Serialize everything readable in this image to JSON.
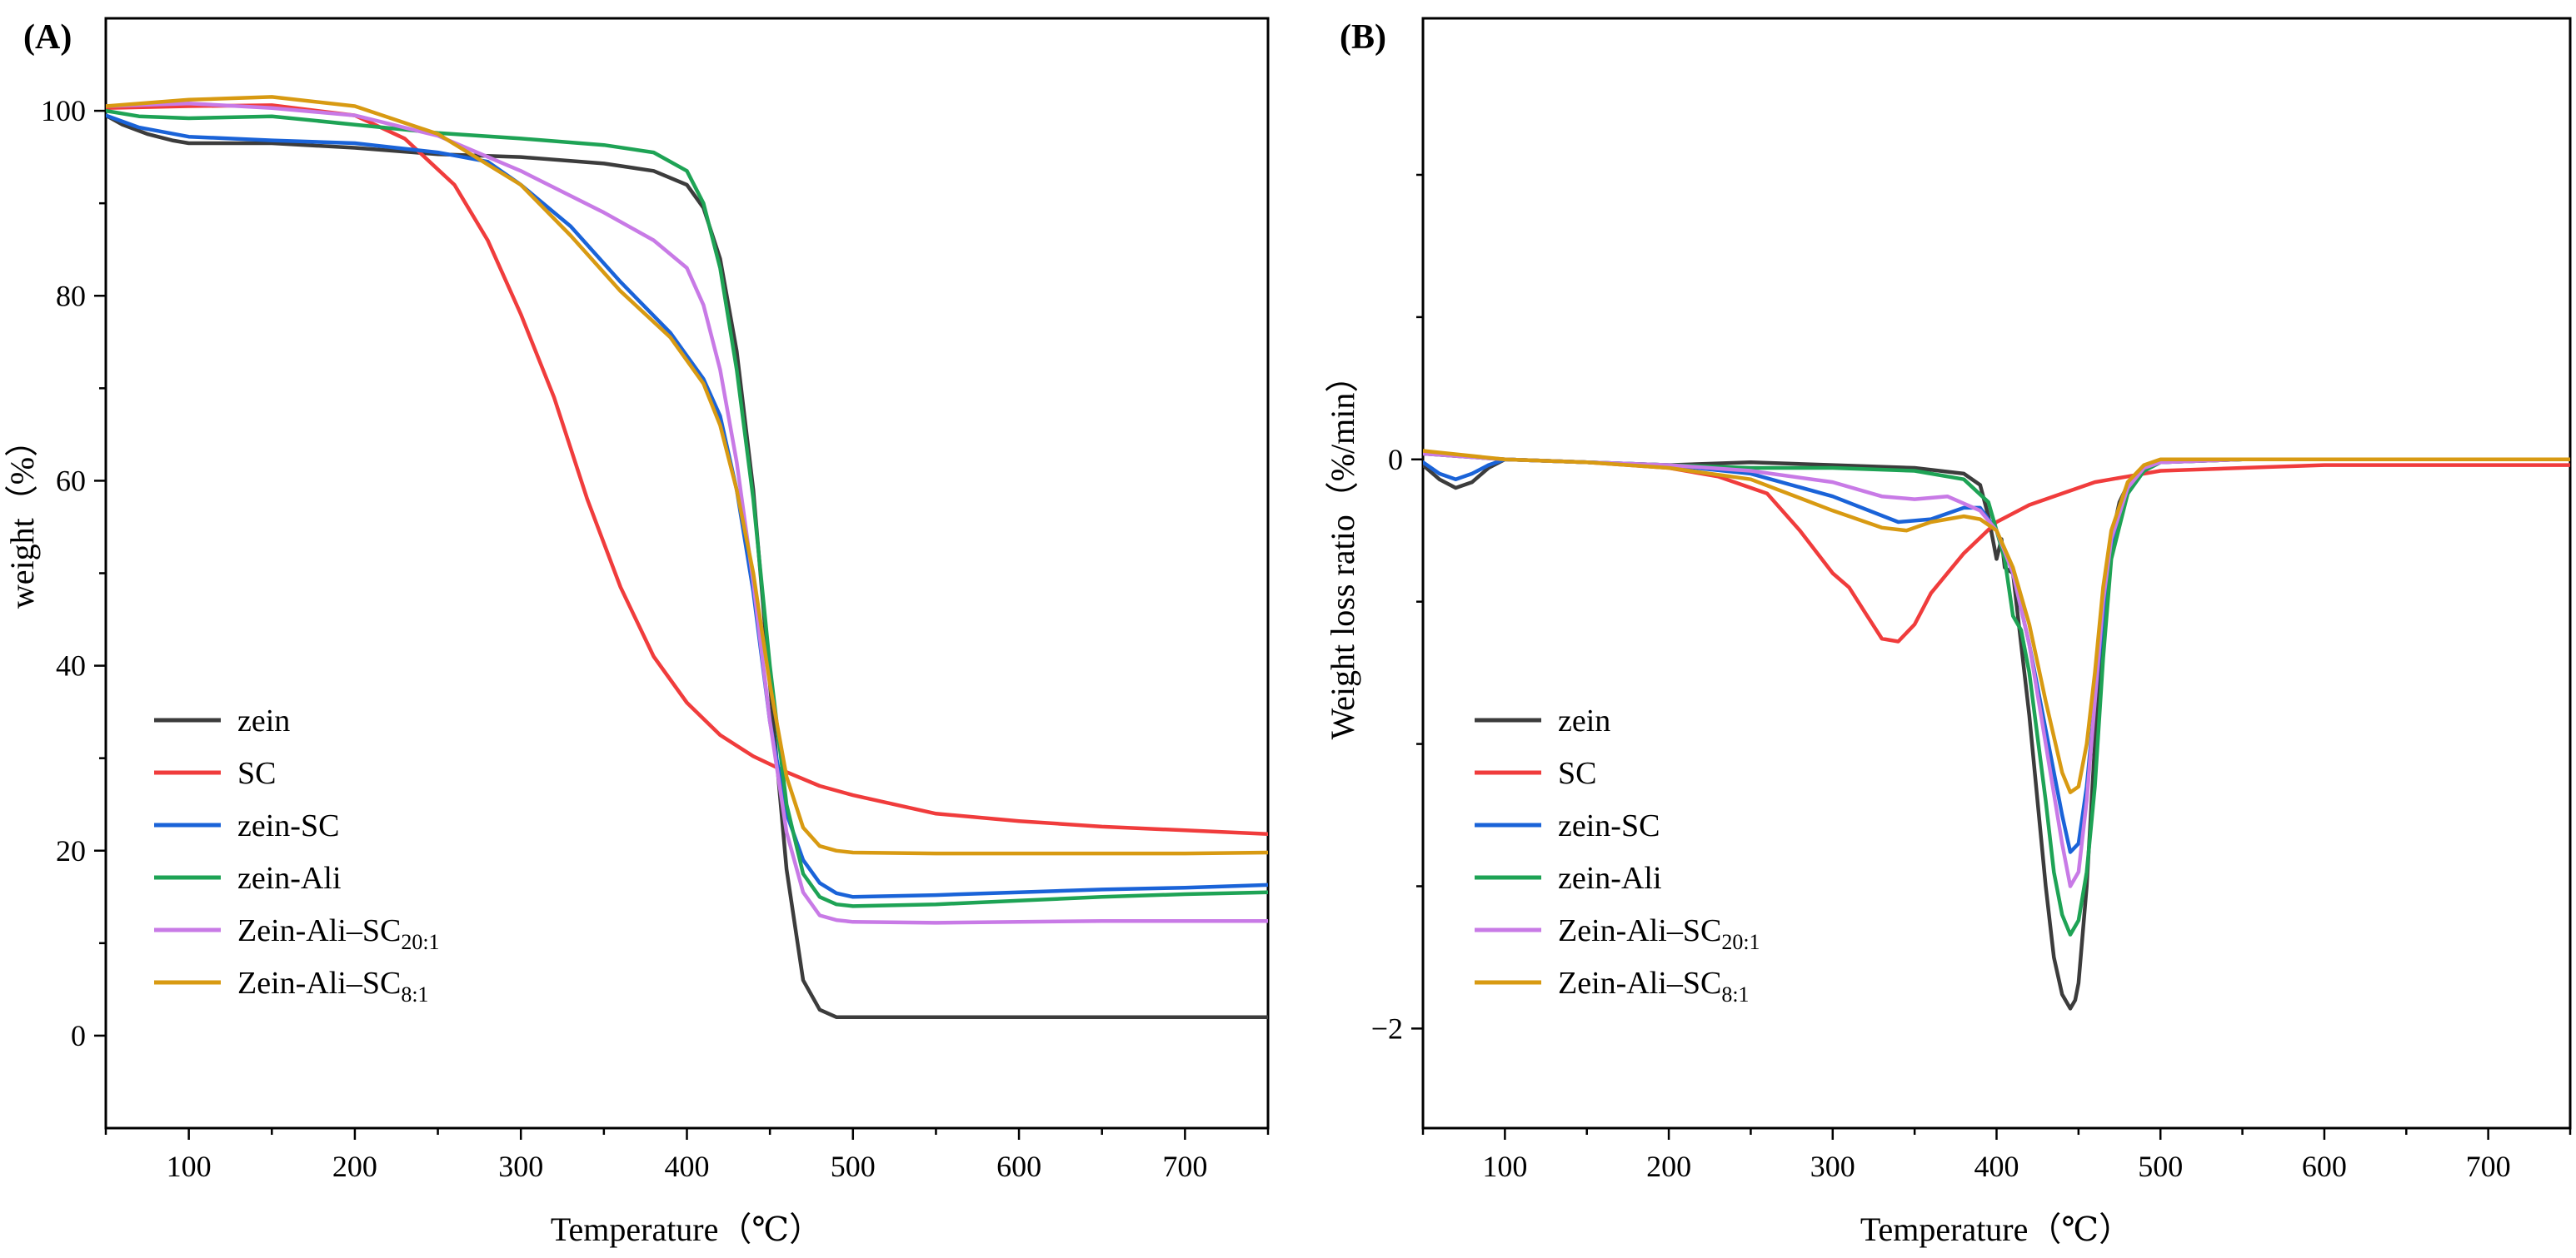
{
  "chart_data": [
    {
      "type": "line",
      "panel_label": "(A)",
      "title": "",
      "xlabel": "Temperature（℃）",
      "ylabel": "weight（%）",
      "xlim": [
        50,
        750
      ],
      "ylim": [
        -10,
        110
      ],
      "xticks": [
        100,
        200,
        300,
        400,
        500,
        600,
        700
      ],
      "yticks": [
        0,
        20,
        40,
        60,
        80,
        100
      ],
      "grid": false,
      "legend_position": "bottom-left",
      "series": [
        {
          "name": "zein",
          "legend_main": "zein",
          "legend_sub": "",
          "color": "#3c3c3c",
          "x": [
            50,
            60,
            75,
            90,
            100,
            150,
            200,
            250,
            300,
            350,
            380,
            400,
            410,
            420,
            430,
            440,
            450,
            460,
            470,
            480,
            490,
            500,
            550,
            600,
            650,
            700,
            750
          ],
          "y": [
            99.5,
            98.5,
            97.5,
            96.8,
            96.5,
            96.5,
            96,
            95.3,
            95,
            94.3,
            93.5,
            92,
            89.5,
            84,
            74,
            59,
            38,
            18,
            6,
            2.8,
            2,
            2,
            2,
            2,
            2,
            2,
            2
          ]
        },
        {
          "name": "SC",
          "legend_main": "SC",
          "legend_sub": "",
          "color": "#f03c3c",
          "x": [
            50,
            100,
            150,
            200,
            230,
            260,
            280,
            300,
            320,
            340,
            360,
            380,
            400,
            420,
            440,
            460,
            480,
            500,
            550,
            600,
            650,
            700,
            750
          ],
          "y": [
            100.3,
            100.5,
            100.6,
            99.5,
            97,
            92,
            86,
            78,
            69,
            58,
            48.5,
            41,
            36,
            32.5,
            30.2,
            28.5,
            27,
            26,
            24,
            23.2,
            22.6,
            22.2,
            21.8
          ]
        },
        {
          "name": "zein-SC",
          "legend_main": "zein-SC",
          "legend_sub": "",
          "color": "#1a63d8",
          "x": [
            50,
            70,
            100,
            150,
            200,
            250,
            280,
            300,
            330,
            360,
            390,
            410,
            420,
            430,
            440,
            450,
            460,
            470,
            480,
            490,
            500,
            550,
            600,
            650,
            700,
            750
          ],
          "y": [
            99.5,
            98.2,
            97.2,
            96.8,
            96.5,
            95.5,
            94.5,
            92,
            87.5,
            81.5,
            76,
            71,
            67,
            59,
            48,
            34,
            24,
            19,
            16.5,
            15.4,
            15,
            15.2,
            15.5,
            15.8,
            16,
            16.3
          ]
        },
        {
          "name": "zein-Ali",
          "legend_main": "zein-Ali",
          "legend_sub": "",
          "color": "#1ea355",
          "x": [
            50,
            70,
            100,
            150,
            200,
            250,
            300,
            350,
            380,
            400,
            410,
            420,
            430,
            440,
            450,
            460,
            470,
            480,
            490,
            500,
            550,
            600,
            650,
            700,
            750
          ],
          "y": [
            100,
            99.4,
            99.2,
            99.4,
            98.5,
            97.6,
            97,
            96.3,
            95.5,
            93.5,
            90,
            83,
            72,
            58,
            40,
            25,
            17.5,
            15,
            14.2,
            14,
            14.2,
            14.6,
            15,
            15.3,
            15.5
          ]
        },
        {
          "name": "Zein-Ali–SC20:1",
          "legend_main": "Zein-Ali–SC",
          "legend_sub": "20:1",
          "color": "#c87ae6",
          "x": [
            50,
            100,
            150,
            200,
            250,
            300,
            350,
            380,
            400,
            410,
            420,
            430,
            440,
            450,
            460,
            470,
            480,
            490,
            500,
            550,
            600,
            650,
            700,
            750
          ],
          "y": [
            100.5,
            100.8,
            100.3,
            99.5,
            97.3,
            93.5,
            89,
            86,
            83,
            79,
            72,
            62,
            49,
            34,
            22,
            15.5,
            13,
            12.5,
            12.3,
            12.2,
            12.3,
            12.4,
            12.4,
            12.4
          ]
        },
        {
          "name": "Zein-Ali–SC8:1",
          "legend_main": "Zein-Ali–SC",
          "legend_sub": "8:1",
          "color": "#d89a12",
          "x": [
            50,
            100,
            150,
            200,
            250,
            300,
            330,
            360,
            390,
            410,
            420,
            430,
            440,
            450,
            460,
            470,
            480,
            490,
            500,
            550,
            600,
            650,
            700,
            750
          ],
          "y": [
            100.5,
            101.2,
            101.5,
            100.5,
            97.5,
            92,
            86.5,
            80.5,
            75.5,
            70.5,
            66,
            59,
            50,
            38,
            28,
            22.5,
            20.5,
            20,
            19.8,
            19.7,
            19.7,
            19.7,
            19.7,
            19.8
          ]
        }
      ]
    },
    {
      "type": "line",
      "panel_label": "(B)",
      "title": "",
      "xlabel": "Temperature（℃）",
      "ylabel": "Weight loss ratio（%/min）",
      "xlim": [
        50,
        750
      ],
      "ylim": [
        -2.35,
        1.55
      ],
      "xticks": [
        100,
        200,
        300,
        400,
        500,
        600,
        700
      ],
      "yticks": [
        0,
        -2
      ],
      "ytick_labels": [
        "0",
        "−2"
      ],
      "grid": false,
      "legend_position": "bottom-left",
      "series": [
        {
          "name": "zein",
          "legend_main": "zein",
          "legend_sub": "",
          "color": "#3c3c3c",
          "x": [
            50,
            60,
            70,
            80,
            90,
            100,
            150,
            200,
            250,
            300,
            350,
            380,
            390,
            395,
            400,
            403,
            405,
            410,
            420,
            430,
            435,
            440,
            445,
            448,
            450,
            455,
            460,
            465,
            470,
            475,
            480,
            490,
            500,
            550,
            600,
            650,
            700,
            750
          ],
          "y": [
            -0.02,
            -0.07,
            -0.1,
            -0.08,
            -0.03,
            0,
            -0.01,
            -0.02,
            -0.01,
            -0.02,
            -0.03,
            -0.05,
            -0.09,
            -0.2,
            -0.35,
            -0.28,
            -0.38,
            -0.4,
            -0.9,
            -1.5,
            -1.75,
            -1.88,
            -1.93,
            -1.9,
            -1.84,
            -1.5,
            -1.0,
            -0.55,
            -0.28,
            -0.15,
            -0.09,
            -0.03,
            -0.01,
            0,
            0,
            0,
            0,
            0
          ]
        },
        {
          "name": "SC",
          "legend_main": "SC",
          "legend_sub": "",
          "color": "#f03c3c",
          "x": [
            50,
            100,
            150,
            200,
            230,
            260,
            280,
            300,
            310,
            320,
            330,
            340,
            350,
            360,
            380,
            400,
            420,
            440,
            460,
            480,
            500,
            550,
            600,
            650,
            700,
            750
          ],
          "y": [
            0.02,
            0,
            -0.01,
            -0.03,
            -0.06,
            -0.12,
            -0.25,
            -0.4,
            -0.45,
            -0.54,
            -0.63,
            -0.64,
            -0.58,
            -0.47,
            -0.33,
            -0.22,
            -0.16,
            -0.12,
            -0.08,
            -0.06,
            -0.04,
            -0.03,
            -0.02,
            -0.02,
            -0.02,
            -0.02
          ]
        },
        {
          "name": "zein-SC",
          "legend_main": "zein-SC",
          "legend_sub": "",
          "color": "#1a63d8",
          "x": [
            50,
            60,
            70,
            80,
            90,
            100,
            150,
            200,
            250,
            300,
            340,
            360,
            380,
            390,
            400,
            410,
            420,
            430,
            440,
            445,
            450,
            455,
            460,
            465,
            470,
            480,
            490,
            500,
            550,
            600,
            650,
            700,
            750
          ],
          "y": [
            -0.01,
            -0.05,
            -0.07,
            -0.05,
            -0.02,
            0,
            -0.01,
            -0.02,
            -0.05,
            -0.13,
            -0.22,
            -0.21,
            -0.17,
            -0.17,
            -0.25,
            -0.4,
            -0.65,
            -0.95,
            -1.25,
            -1.38,
            -1.35,
            -1.15,
            -0.85,
            -0.55,
            -0.32,
            -0.12,
            -0.04,
            -0.01,
            0,
            0,
            0,
            0,
            0
          ]
        },
        {
          "name": "zein-Ali",
          "legend_main": "zein-Ali",
          "legend_sub": "",
          "color": "#1ea355",
          "x": [
            50,
            100,
            150,
            200,
            250,
            300,
            350,
            380,
            395,
            405,
            410,
            415,
            420,
            430,
            435,
            440,
            445,
            450,
            455,
            460,
            465,
            470,
            480,
            490,
            500,
            550,
            600,
            650,
            700,
            750
          ],
          "y": [
            0.02,
            0,
            -0.01,
            -0.02,
            -0.03,
            -0.03,
            -0.04,
            -0.07,
            -0.15,
            -0.35,
            -0.55,
            -0.6,
            -0.75,
            -1.2,
            -1.45,
            -1.6,
            -1.67,
            -1.62,
            -1.45,
            -1.15,
            -0.7,
            -0.35,
            -0.12,
            -0.04,
            -0.01,
            0,
            0,
            0,
            0,
            0
          ]
        },
        {
          "name": "Zein-Ali–SC20:1",
          "legend_main": "Zein-Ali–SC",
          "legend_sub": "20:1",
          "color": "#c87ae6",
          "x": [
            50,
            100,
            150,
            200,
            250,
            300,
            330,
            350,
            370,
            390,
            400,
            410,
            420,
            430,
            440,
            445,
            450,
            455,
            460,
            465,
            470,
            480,
            490,
            500,
            550,
            600,
            650,
            700,
            750
          ],
          "y": [
            0.02,
            0,
            -0.01,
            -0.02,
            -0.04,
            -0.08,
            -0.13,
            -0.14,
            -0.13,
            -0.18,
            -0.25,
            -0.4,
            -0.65,
            -1.0,
            -1.35,
            -1.5,
            -1.45,
            -1.2,
            -0.85,
            -0.5,
            -0.28,
            -0.1,
            -0.03,
            -0.01,
            0,
            0,
            0,
            0,
            0
          ]
        },
        {
          "name": "Zein-Ali–SC8:1",
          "legend_main": "Zein-Ali–SC",
          "legend_sub": "8:1",
          "color": "#d89a12",
          "x": [
            50,
            100,
            150,
            200,
            250,
            300,
            330,
            345,
            360,
            380,
            390,
            400,
            410,
            420,
            430,
            440,
            445,
            450,
            455,
            460,
            465,
            470,
            480,
            490,
            500,
            550,
            600,
            650,
            700,
            750
          ],
          "y": [
            0.03,
            0,
            -0.01,
            -0.03,
            -0.07,
            -0.18,
            -0.24,
            -0.25,
            -0.22,
            -0.2,
            -0.21,
            -0.25,
            -0.38,
            -0.58,
            -0.85,
            -1.1,
            -1.17,
            -1.15,
            -1.0,
            -0.75,
            -0.45,
            -0.25,
            -0.08,
            -0.02,
            0,
            0,
            0,
            0,
            0,
            0
          ]
        }
      ]
    }
  ]
}
